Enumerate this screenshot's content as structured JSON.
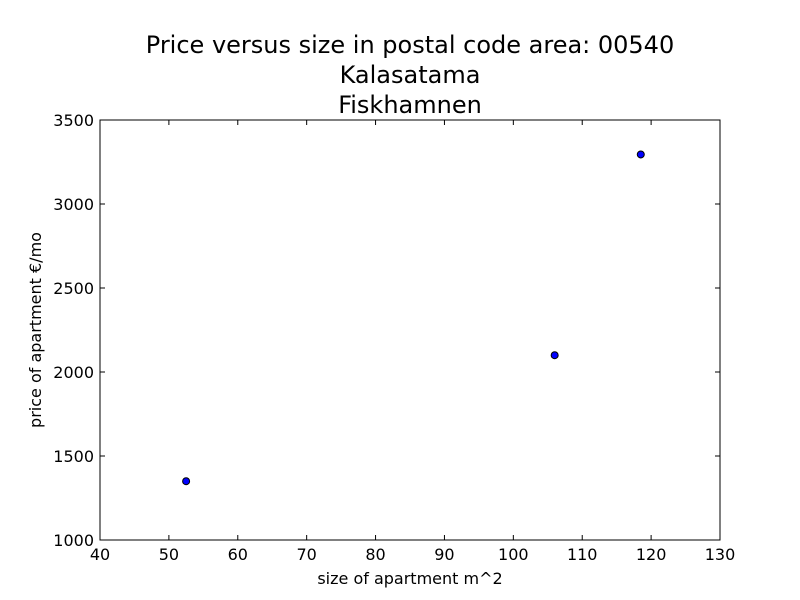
{
  "chart_data": {
    "type": "scatter",
    "title_lines": [
      "Price versus size in postal code area: 00540",
      "Kalasatama",
      "Fiskhamnen"
    ],
    "xlabel": "size of apartment m^2",
    "ylabel": "price of apartment €/mo",
    "xlim": [
      40,
      130
    ],
    "ylim": [
      1000,
      3500
    ],
    "xticks": [
      40,
      50,
      60,
      70,
      80,
      90,
      100,
      110,
      120,
      130
    ],
    "yticks": [
      1000,
      1500,
      2000,
      2500,
      3000,
      3500
    ],
    "grid": false,
    "marker_color": "#0000ff",
    "points": [
      {
        "x": 52.5,
        "y": 1350
      },
      {
        "x": 106,
        "y": 2100
      },
      {
        "x": 118.5,
        "y": 3295
      }
    ]
  }
}
